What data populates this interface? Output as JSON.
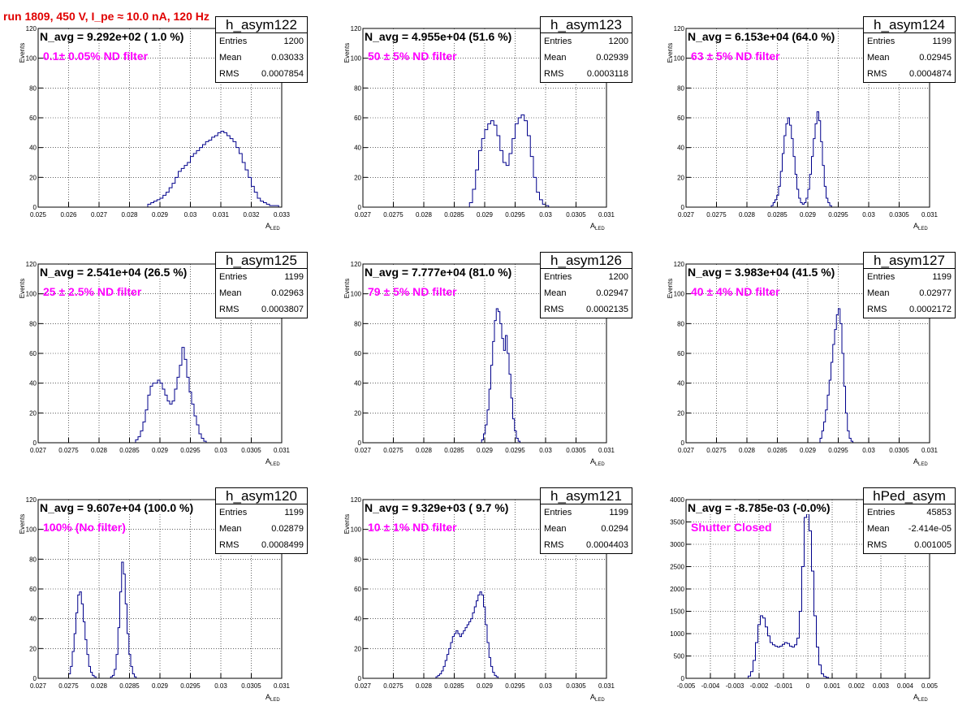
{
  "title": "run 1809,   450 V, I_pe ≈ 10.0 nA, 120 Hz",
  "colors": {
    "title": "#e00000",
    "histogram": "#00008b",
    "filter_text": "#ff00ff",
    "grid": "#000000"
  },
  "chart_data": [
    {
      "type": "histogram",
      "name": "h_asym122",
      "navg": "N_avg = 9.292e+02 ( 1.0 %)",
      "filter": "0.1± 0.05% ND filter",
      "stats": {
        "entries": "1200",
        "mean": "0.03033",
        "rms": "0.0007854"
      },
      "xlim": [
        0.025,
        0.033
      ],
      "ylim": [
        0,
        120
      ],
      "xticks": [
        "0.025",
        "0.026",
        "0.027",
        "0.028",
        "0.029",
        "0.03",
        "0.031",
        "0.032",
        "0.033"
      ],
      "yticks": [
        "0",
        "20",
        "40",
        "60",
        "80",
        "100",
        "120"
      ],
      "xlabel": "A",
      "xlabel_sub": "LED",
      "ylabel": "Events",
      "grid": true,
      "legend": "top-right",
      "bins": {
        "start": 0.0286,
        "width": 0.0001,
        "values": [
          2,
          3,
          4,
          5,
          6,
          8,
          10,
          13,
          16,
          20,
          24,
          26,
          28,
          30,
          34,
          36,
          38,
          40,
          42,
          44,
          45,
          47,
          48,
          50,
          51,
          50,
          48,
          46,
          44,
          40,
          36,
          30,
          25,
          20,
          14,
          10,
          6,
          4,
          3,
          2,
          1,
          1,
          1
        ]
      }
    },
    {
      "type": "histogram",
      "name": "h_asym123",
      "navg": "N_avg = 4.955e+04 (51.6 %)",
      "filter": "50 ± 5% ND filter",
      "stats": {
        "entries": "1200",
        "mean": "0.02939",
        "rms": "0.0003118"
      },
      "xlim": [
        0.027,
        0.031
      ],
      "ylim": [
        0,
        120
      ],
      "xticks": [
        "0.027",
        "0.0275",
        "0.028",
        "0.0285",
        "0.029",
        "0.0295",
        "0.03",
        "0.0305",
        "0.031"
      ],
      "yticks": [
        "0",
        "20",
        "40",
        "60",
        "80",
        "100",
        "120"
      ],
      "xlabel": "A",
      "xlabel_sub": "LED",
      "ylabel": "Events",
      "grid": true,
      "legend": "top-right",
      "bins": {
        "start": 0.02875,
        "width": 5e-05,
        "values": [
          3,
          12,
          25,
          38,
          46,
          52,
          56,
          58,
          55,
          48,
          38,
          30,
          28,
          36,
          46,
          56,
          60,
          62,
          58,
          48,
          34,
          20,
          10,
          5,
          2,
          1
        ]
      }
    },
    {
      "type": "histogram",
      "name": "h_asym124",
      "navg": "N_avg = 6.153e+04 (64.0 %)",
      "filter": "63 ± 5% ND filter",
      "stats": {
        "entries": "1199",
        "mean": "0.02945",
        "rms": "0.0004874"
      },
      "xlim": [
        0.027,
        0.031
      ],
      "ylim": [
        0,
        120
      ],
      "xticks": [
        "0.027",
        "0.0275",
        "0.028",
        "0.0285",
        "0.029",
        "0.0295",
        "0.03",
        "0.0305",
        "0.031"
      ],
      "yticks": [
        "0",
        "20",
        "40",
        "60",
        "80",
        "100",
        "120"
      ],
      "xlabel": "A",
      "xlabel_sub": "LED",
      "ylabel": "Events",
      "grid": true,
      "legend": "top-right",
      "bins": {
        "start": 0.0284,
        "width": 3e-05,
        "values": [
          1,
          3,
          5,
          8,
          14,
          24,
          36,
          48,
          56,
          60,
          55,
          46,
          34,
          22,
          12,
          6,
          3,
          2,
          3,
          6,
          12,
          22,
          34,
          46,
          56,
          64,
          58,
          44,
          28,
          14,
          6,
          3,
          1
        ]
      }
    },
    {
      "type": "histogram",
      "name": "h_asym125",
      "navg": "N_avg = 2.541e+04 (26.5 %)",
      "filter": "25 ± 2.5% ND filter",
      "stats": {
        "entries": "1199",
        "mean": "0.02963",
        "rms": "0.0003807"
      },
      "xlim": [
        0.027,
        0.031
      ],
      "ylim": [
        0,
        120
      ],
      "xticks": [
        "0.027",
        "0.0275",
        "0.028",
        "0.0285",
        "0.029",
        "0.0295",
        "0.03",
        "0.0305",
        "0.031"
      ],
      "yticks": [
        "0",
        "20",
        "40",
        "60",
        "80",
        "100",
        "120"
      ],
      "xlabel": "A",
      "xlabel_sub": "LED",
      "ylabel": "Events",
      "grid": true,
      "legend": "top-right",
      "bins": {
        "start": 0.0286,
        "width": 4e-05,
        "values": [
          2,
          4,
          8,
          14,
          22,
          32,
          38,
          40,
          40,
          42,
          40,
          36,
          32,
          28,
          26,
          28,
          36,
          44,
          52,
          64,
          56,
          44,
          34,
          26,
          18,
          12,
          6,
          3,
          1
        ]
      }
    },
    {
      "type": "histogram",
      "name": "h_asym126",
      "navg": "N_avg = 7.777e+04 (81.0 %)",
      "filter": "79 ± 5% ND filter",
      "stats": {
        "entries": "1200",
        "mean": "0.02947",
        "rms": "0.0002135"
      },
      "xlim": [
        0.027,
        0.031
      ],
      "ylim": [
        0,
        120
      ],
      "xticks": [
        "0.027",
        "0.0275",
        "0.028",
        "0.0285",
        "0.029",
        "0.0295",
        "0.03",
        "0.0305",
        "0.031"
      ],
      "yticks": [
        "0",
        "20",
        "40",
        "60",
        "80",
        "100",
        "120"
      ],
      "xlabel": "A",
      "xlabel_sub": "LED",
      "ylabel": "Events",
      "grid": true,
      "legend": "top-right",
      "bins": {
        "start": 0.02895,
        "width": 3e-05,
        "values": [
          2,
          6,
          12,
          22,
          36,
          52,
          68,
          82,
          90,
          88,
          80,
          70,
          62,
          72,
          60,
          46,
          30,
          16,
          8,
          3,
          1
        ]
      }
    },
    {
      "type": "histogram",
      "name": "h_asym127",
      "navg": "N_avg = 3.983e+04 (41.5 %)",
      "filter": "40 ± 4% ND filter",
      "stats": {
        "entries": "1199",
        "mean": "0.02977",
        "rms": "0.0002172"
      },
      "xlim": [
        0.027,
        0.031
      ],
      "ylim": [
        0,
        120
      ],
      "xticks": [
        "0.027",
        "0.0275",
        "0.028",
        "0.0285",
        "0.029",
        "0.0295",
        "0.03",
        "0.0305",
        "0.031"
      ],
      "yticks": [
        "0",
        "20",
        "40",
        "60",
        "80",
        "100",
        "120"
      ],
      "xlabel": "A",
      "xlabel_sub": "LED",
      "ylabel": "Events",
      "grid": true,
      "legend": "top-right",
      "bins": {
        "start": 0.0292,
        "width": 3e-05,
        "values": [
          3,
          8,
          14,
          22,
          32,
          42,
          54,
          66,
          76,
          86,
          90,
          80,
          60,
          38,
          20,
          8,
          3,
          1
        ]
      }
    },
    {
      "type": "histogram",
      "name": "h_asym120",
      "navg": "N_avg = 9.607e+04 (100.0 %)",
      "filter": "100% (No filter)",
      "stats": {
        "entries": "1199",
        "mean": "0.02879",
        "rms": "0.0008499"
      },
      "xlim": [
        0.027,
        0.031
      ],
      "ylim": [
        0,
        120
      ],
      "xticks": [
        "0.027",
        "0.0275",
        "0.028",
        "0.0285",
        "0.029",
        "0.0295",
        "0.03",
        "0.0305",
        "0.031"
      ],
      "yticks": [
        "0",
        "20",
        "40",
        "60",
        "80",
        "100",
        "120"
      ],
      "xlabel": "A",
      "xlabel_sub": "LED",
      "ylabel": "Events",
      "grid": true,
      "legend": "top-right",
      "bins": {
        "start": 0.0275,
        "width": 3e-05,
        "values": [
          3,
          8,
          18,
          30,
          44,
          56,
          58,
          50,
          38,
          26,
          16,
          8,
          4,
          2,
          1,
          0,
          0,
          0,
          0,
          0,
          0,
          0,
          0,
          1,
          2,
          6,
          16,
          34,
          58,
          78,
          70,
          50,
          30,
          16,
          8,
          3,
          1
        ]
      }
    },
    {
      "type": "histogram",
      "name": "h_asym121",
      "navg": "N_avg = 9.329e+03 ( 9.7 %)",
      "filter": "10 ± 1% ND filter",
      "stats": {
        "entries": "1199",
        "mean": "0.0294",
        "rms": "0.0004403"
      },
      "xlim": [
        0.027,
        0.031
      ],
      "ylim": [
        0,
        120
      ],
      "xticks": [
        "0.027",
        "0.0275",
        "0.028",
        "0.0285",
        "0.029",
        "0.0295",
        "0.03",
        "0.0305",
        "0.031"
      ],
      "yticks": [
        "0",
        "20",
        "40",
        "60",
        "80",
        "100",
        "120"
      ],
      "xlabel": "A",
      "xlabel_sub": "LED",
      "ylabel": "Events",
      "grid": true,
      "legend": "top-right",
      "bins": {
        "start": 0.0282,
        "width": 3e-05,
        "values": [
          1,
          2,
          3,
          5,
          8,
          12,
          16,
          20,
          24,
          28,
          30,
          32,
          30,
          28,
          30,
          32,
          34,
          36,
          38,
          40,
          44,
          48,
          52,
          56,
          58,
          56,
          48,
          36,
          24,
          14,
          8,
          4,
          2,
          1
        ]
      }
    },
    {
      "type": "histogram",
      "name": "hPed_asym",
      "navg": "N_avg = -8.785e-03 (-0.0%)",
      "filter": "Shutter Closed",
      "stats": {
        "entries": "45853",
        "mean": "-2.414e-05",
        "rms": "0.001005"
      },
      "xlim": [
        -0.005,
        0.005
      ],
      "ylim": [
        0,
        4000
      ],
      "xticks": [
        "-0.005",
        "-0.004",
        "-0.003",
        "-0.002",
        "-0.001",
        "0",
        "0.001",
        "0.002",
        "0.003",
        "0.004",
        "0.005"
      ],
      "yticks": [
        "0",
        "500",
        "1000",
        "1500",
        "2000",
        "2500",
        "3000",
        "3500",
        "4000"
      ],
      "xlabel": "A",
      "xlabel_sub": "LED",
      "ylabel": "",
      "grid": true,
      "legend": "top-right",
      "bins": {
        "start": -0.00245,
        "width": 0.0001,
        "values": [
          50,
          150,
          400,
          800,
          1200,
          1400,
          1350,
          1150,
          950,
          800,
          750,
          720,
          700,
          720,
          760,
          800,
          780,
          720,
          700,
          750,
          900,
          1500,
          2500,
          3600,
          3800,
          3300,
          2400,
          1400,
          700,
          300,
          100,
          40,
          20
        ]
      }
    }
  ]
}
